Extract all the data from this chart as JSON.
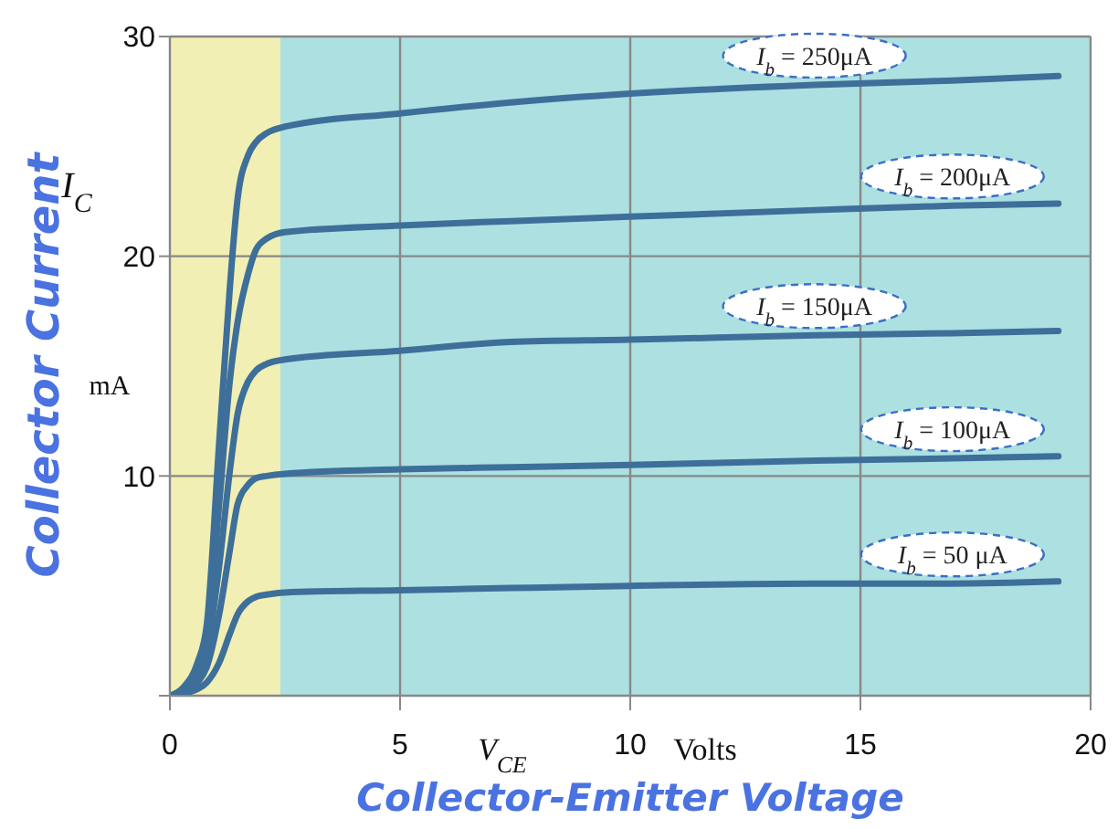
{
  "chart_data": {
    "type": "line",
    "xlabel": "Collector-Emitter Voltage",
    "ylabel": "Collector Current",
    "annotations": [
      "I$_{C}$",
      "mA",
      "V$_{CE}$",
      "Volts"
    ],
    "x": [
      0,
      0.3,
      0.6,
      0.8,
      1.07,
      1.3,
      1.47,
      1.7,
      1.87,
      2.1,
      2.5,
      5,
      7.4,
      10,
      14,
      17,
      19.3
    ],
    "series": [
      {
        "name": "I$_{b}$ = 250μA",
        "color": "#3d6f9a",
        "values": [
          0,
          0.4,
          1.5,
          3.2,
          11.5,
          18.5,
          22.6,
          24.6,
          25.2,
          25.6,
          25.9,
          26.5,
          27.0,
          27.4,
          27.8,
          28.0,
          28.2
        ]
      },
      {
        "name": "I$_{b}$ = 200μA",
        "color": "#3d6f9a",
        "values": [
          0,
          0.3,
          1.2,
          2.6,
          8.7,
          14.3,
          17,
          19.2,
          20.3,
          20.8,
          21.1,
          21.4,
          21.6,
          21.8,
          22.1,
          22.3,
          22.4
        ]
      },
      {
        "name": "I$_{b}$ = 150μA",
        "color": "#3d6f9a",
        "values": [
          0,
          0.2,
          0.9,
          2.0,
          5.9,
          10.2,
          12.8,
          14.3,
          14.8,
          15.1,
          15.3,
          15.7,
          16.1,
          16.2,
          16.4,
          16.5,
          16.6
        ]
      },
      {
        "name": "I$_{b}$ = 100μA",
        "color": "#3d6f9a",
        "values": [
          0,
          0.2,
          0.6,
          1.3,
          3.7,
          6.6,
          8.7,
          9.6,
          9.9,
          10.0,
          10.1,
          10.3,
          10.4,
          10.5,
          10.7,
          10.8,
          10.9
        ]
      },
      {
        "name": "I$_{b}$ = 50 μA",
        "color": "#3d6f9a",
        "values": [
          0,
          0.1,
          0.3,
          0.6,
          1.5,
          2.8,
          3.7,
          4.3,
          4.5,
          4.6,
          4.7,
          4.8,
          4.9,
          5.0,
          5.1,
          5.1,
          5.2
        ]
      }
    ],
    "xlim": [
      0,
      20
    ],
    "xticks": [
      0,
      5,
      10,
      15,
      20
    ],
    "ylim": [
      0,
      30
    ],
    "yticks": [
      {
        "value": 0,
        "label": null
      },
      10,
      20,
      30
    ],
    "bands": [
      {
        "axis": "x",
        "from": 0,
        "to": 2.4,
        "color": "#f2efb4"
      },
      {
        "axis": "x",
        "from": 2.4,
        "to": 20,
        "color": "#ade0e0"
      }
    ],
    "grid": true,
    "marker": "none",
    "line_style": "solid"
  }
}
